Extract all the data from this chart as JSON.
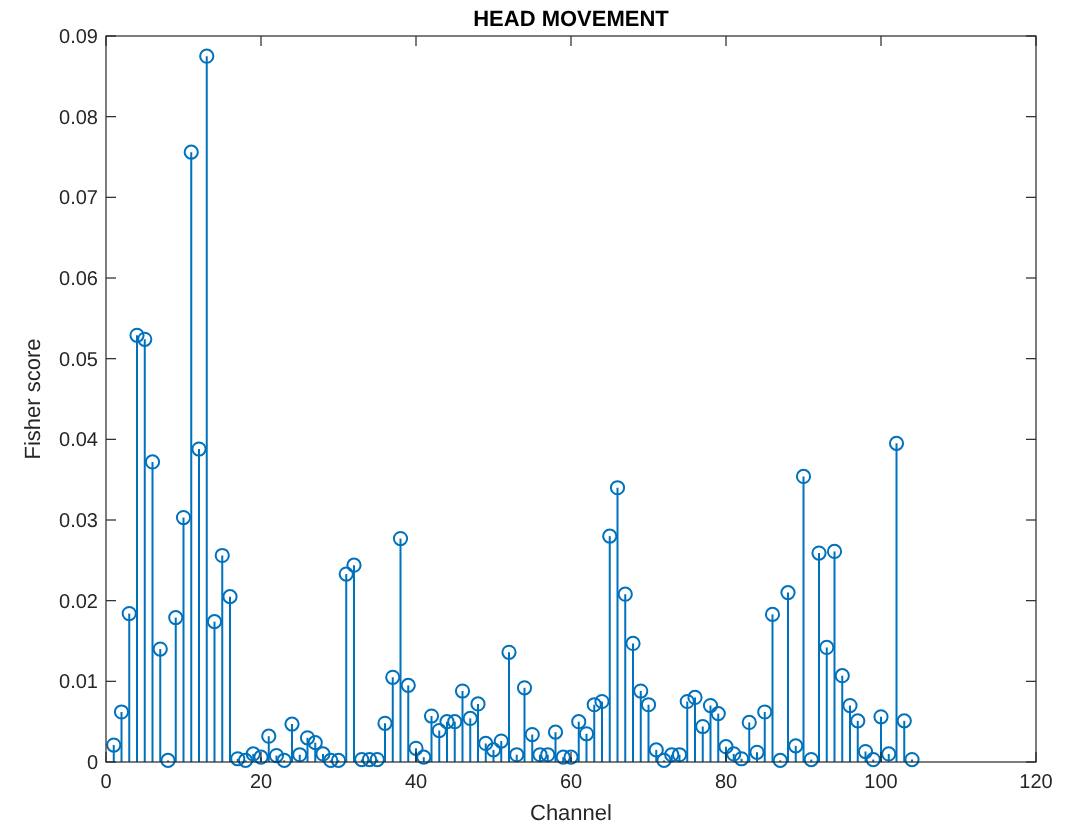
{
  "chart_data": {
    "type": "lollipop",
    "title": "HEAD MOVEMENT",
    "xlabel": "Channel",
    "ylabel": "Fisher score",
    "marker": "circle",
    "grid": false,
    "x": [
      1,
      2,
      3,
      4,
      5,
      6,
      7,
      8,
      9,
      10,
      11,
      12,
      13,
      14,
      15,
      16,
      17,
      18,
      19,
      20,
      21,
      22,
      23,
      24,
      25,
      26,
      27,
      28,
      29,
      30,
      31,
      32,
      33,
      34,
      35,
      36,
      37,
      38,
      39,
      40,
      41,
      42,
      43,
      44,
      45,
      46,
      47,
      48,
      49,
      50,
      51,
      52,
      53,
      54,
      55,
      56,
      57,
      58,
      59,
      60,
      61,
      62,
      63,
      64,
      65,
      66,
      67,
      68,
      69,
      70,
      71,
      72,
      73,
      74,
      75,
      76,
      77,
      78,
      79,
      80,
      81,
      82,
      83,
      84,
      85,
      86,
      87,
      88,
      89,
      90,
      91,
      92,
      93,
      94,
      95,
      96,
      97,
      98,
      99,
      100,
      101,
      102,
      103,
      104
    ],
    "series": [
      {
        "color": "#0072bd",
        "values": [
          0.0021,
          0.0062,
          0.0184,
          0.0529,
          0.0524,
          0.0372,
          0.014,
          0.0002,
          0.0179,
          0.0303,
          0.0756,
          0.0388,
          0.0875,
          0.0174,
          0.0256,
          0.0205,
          0.0004,
          0.0002,
          0.001,
          0.0006,
          0.0032,
          0.0008,
          0.0002,
          0.0047,
          0.0009,
          0.003,
          0.0024,
          0.001,
          0.0002,
          0.0002,
          0.0233,
          0.0244,
          0.0003,
          0.0003,
          0.0003,
          0.0048,
          0.0105,
          0.0277,
          0.0095,
          0.0017,
          0.0006,
          0.0057,
          0.0039,
          0.005,
          0.005,
          0.0088,
          0.0054,
          0.0072,
          0.0023,
          0.0015,
          0.0026,
          0.0136,
          0.0009,
          0.0092,
          0.0034,
          0.0009,
          0.0009,
          0.0037,
          0.0006,
          0.0006,
          0.005,
          0.0035,
          0.0071,
          0.0075,
          0.028,
          0.034,
          0.0208,
          0.0147,
          0.0088,
          0.0071,
          0.0015,
          0.0002,
          0.0009,
          0.0009,
          0.0075,
          0.008,
          0.0044,
          0.007,
          0.006,
          0.0019,
          0.001,
          0.0004,
          0.0049,
          0.0012,
          0.0062,
          0.0183,
          0.0002,
          0.021,
          0.002,
          0.0354,
          0.0003,
          0.0259,
          0.0142,
          0.0261,
          0.0107,
          0.007,
          0.0051,
          0.0013,
          0.0003,
          0.0056,
          0.001,
          0.0395,
          0.0051,
          0.0003
        ]
      }
    ],
    "xlim": [
      0,
      120
    ],
    "xticks": [
      0,
      20,
      40,
      60,
      80,
      100,
      120
    ],
    "ylim": [
      0,
      0.09
    ],
    "yticks": [
      0,
      0.01,
      0.02,
      0.03,
      0.04,
      0.05,
      0.06,
      0.07,
      0.08,
      0.09
    ]
  }
}
